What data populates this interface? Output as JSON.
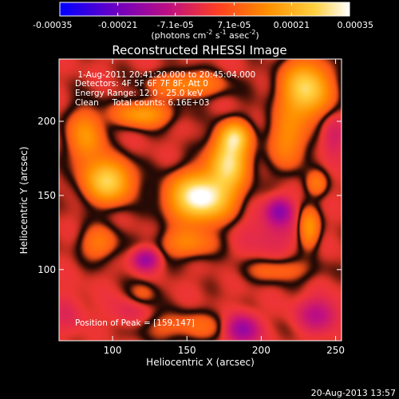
{
  "chart_data": {
    "type": "heatmap",
    "title": "Reconstructed RHESSI Image",
    "xlabel": "Heliocentric X (arcsec)",
    "ylabel": "Heliocentric Y (arcsec)",
    "xlim": [
      64,
      254
    ],
    "ylim": [
      52,
      242
    ],
    "x_ticks": [
      100,
      150,
      200,
      250
    ],
    "y_ticks": [
      100,
      150,
      200
    ],
    "colorbar": {
      "label_main": "(photons cm",
      "label_sup1": "-2",
      "label_mid1": " s",
      "label_sup2": "-1",
      "label_mid2": " asec",
      "label_sup3": "-2",
      "label_end": ")",
      "range": [
        -0.00035,
        0.00035
      ],
      "tick_values": [
        -0.00035,
        -0.00021,
        -7.1e-05,
        7.1e-05,
        0.00021,
        0.00035
      ],
      "tick_labels": [
        "-0.00035",
        "-0.00021",
        "-7.1e-05",
        "7.1e-05",
        "0.00021",
        "0.00035"
      ],
      "colormap": [
        "#0000ff",
        "#7000c0",
        "#c01080",
        "#ff4020",
        "#ff9000",
        "#ffd040",
        "#ffffff"
      ]
    },
    "annotations": [
      " 1-Aug-2011 20:41:20.000 to 20:45:04.000",
      "Detectors: 4F 5F 6F 7F 8F, Att 0",
      "Energy Range: 12.0 - 25.0 keV",
      "Clean     Total counts: 6.16E+03"
    ],
    "peak_label": "Position of Peak = [159,147]",
    "sources": [
      {
        "x": 159,
        "y": 149,
        "sx": 14,
        "sy": 11,
        "amp": 1.0
      },
      {
        "x": 178,
        "y": 173,
        "sx": 9,
        "sy": 12,
        "amp": 0.75
      },
      {
        "x": 182,
        "y": 190,
        "sx": 7,
        "sy": 7,
        "amp": 0.55
      },
      {
        "x": 97,
        "y": 160,
        "sx": 11,
        "sy": 10,
        "amp": 0.72
      },
      {
        "x": 120,
        "y": 205,
        "sx": 13,
        "sy": 6,
        "amp": 0.45
      },
      {
        "x": 230,
        "y": 222,
        "sx": 11,
        "sy": 13,
        "amp": 0.75
      },
      {
        "x": 218,
        "y": 188,
        "sx": 9,
        "sy": 14,
        "amp": 0.35
      },
      {
        "x": 82,
        "y": 190,
        "sx": 8,
        "sy": 13,
        "amp": 0.42
      },
      {
        "x": 150,
        "y": 225,
        "sx": 18,
        "sy": 6,
        "amp": 0.35
      },
      {
        "x": 150,
        "y": 118,
        "sx": 13,
        "sy": 7,
        "amp": 0.32
      },
      {
        "x": 232,
        "y": 128,
        "sx": 5,
        "sy": 9,
        "amp": 0.42
      },
      {
        "x": 212,
        "y": 100,
        "sx": 16,
        "sy": 6,
        "amp": 0.22
      },
      {
        "x": 91,
        "y": 118,
        "sx": 9,
        "sy": 8,
        "amp": 0.28
      },
      {
        "x": 150,
        "y": 62,
        "sx": 28,
        "sy": 7,
        "amp": 0.2
      },
      {
        "x": 237,
        "y": 158,
        "sx": 5,
        "sy": 6,
        "amp": 0.25
      },
      {
        "x": 120,
        "y": 84,
        "sx": 7,
        "sy": 6,
        "amp": 0.18
      },
      {
        "x": 122,
        "y": 107,
        "sx": 6,
        "sy": 5,
        "amp": -0.45
      },
      {
        "x": 212,
        "y": 140,
        "sx": 6,
        "sy": 6,
        "amp": -0.45
      },
      {
        "x": 187,
        "y": 60,
        "sx": 8,
        "sy": 7,
        "amp": -0.55
      },
      {
        "x": 238,
        "y": 70,
        "sx": 10,
        "sy": 8,
        "amp": -0.3
      },
      {
        "x": 206,
        "y": 125,
        "sx": 14,
        "sy": 12,
        "amp": -0.15
      },
      {
        "x": 110,
        "y": 70,
        "sx": 10,
        "sy": 8,
        "amp": -0.15
      },
      {
        "x": 248,
        "y": 190,
        "sx": 6,
        "sy": 10,
        "amp": -0.2
      },
      {
        "x": 70,
        "y": 70,
        "sx": 8,
        "sy": 10,
        "amp": -0.12
      }
    ]
  },
  "footer": {
    "date": "20-Aug-2013 13:57"
  }
}
